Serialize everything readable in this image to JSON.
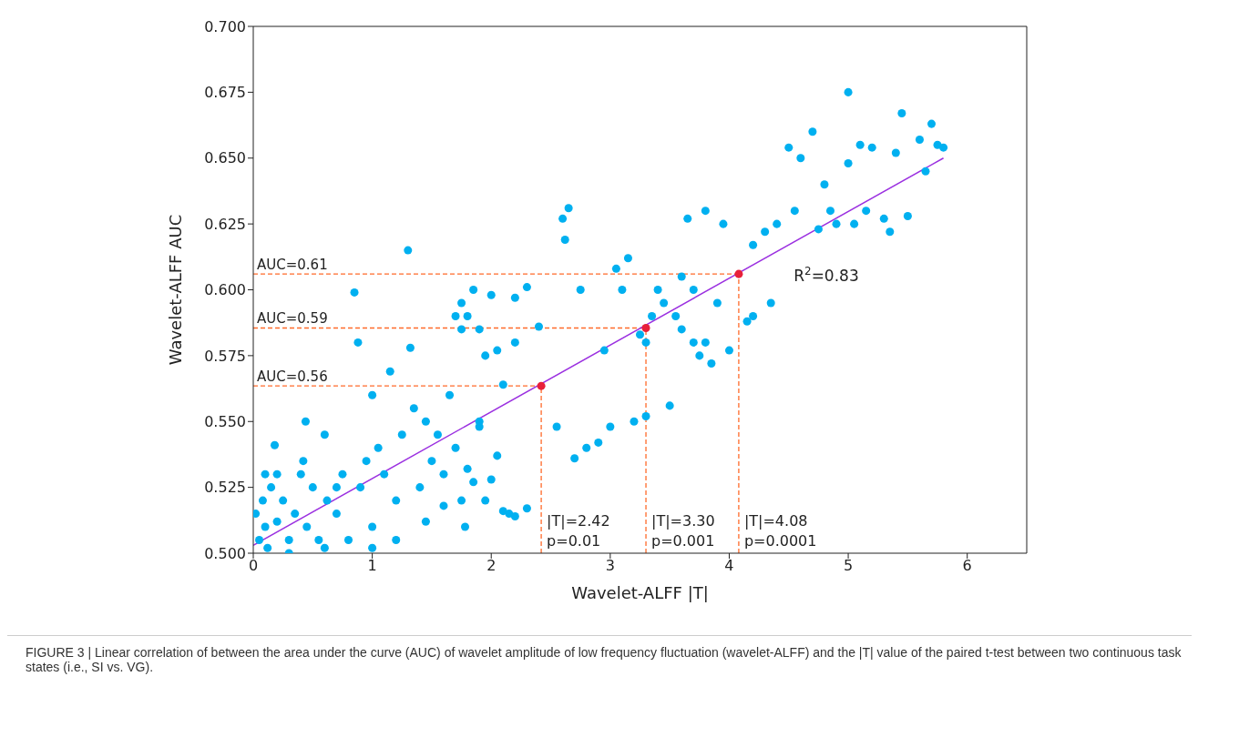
{
  "chart_data": {
    "type": "scatter",
    "xlabel": "Wavelet-ALFF |T|",
    "ylabel": "Wavelet-ALFF AUC",
    "xlim": [
      0,
      6.5
    ],
    "ylim": [
      0.5,
      0.7
    ],
    "xticks": [
      0,
      1,
      2,
      3,
      4,
      5,
      6
    ],
    "yticks": [
      {
        "value": 0.5,
        "label": "0.500"
      },
      {
        "value": 0.525,
        "label": "0.525"
      },
      {
        "value": 0.55,
        "label": "0.550"
      },
      {
        "value": 0.575,
        "label": "0.575"
      },
      {
        "value": 0.6,
        "label": "0.600"
      },
      {
        "value": 0.625,
        "label": "0.625"
      },
      {
        "value": 0.65,
        "label": "0.650"
      },
      {
        "value": 0.675,
        "label": "0.675"
      },
      {
        "value": 0.7,
        "label": "0.700"
      }
    ],
    "grid": false,
    "legend": false,
    "marker": "circle",
    "series": [
      {
        "color": "#00b0f0",
        "x": [
          0.02,
          0.05,
          0.08,
          0.1,
          0.12,
          0.15,
          0.18,
          0.2,
          0.25,
          0.3,
          0.35,
          0.4,
          0.42,
          0.44,
          0.45,
          0.5,
          0.55,
          0.6,
          0.62,
          0.7,
          0.75,
          0.8,
          0.85,
          0.88,
          0.9,
          0.95,
          1.0,
          1.05,
          1.1,
          1.15,
          1.2,
          1.25,
          1.3,
          1.32,
          1.35,
          1.4,
          1.45,
          1.5,
          1.55,
          1.6,
          1.65,
          1.7,
          1.75,
          1.78,
          1.8,
          1.85,
          1.9,
          1.95,
          2.0,
          2.05,
          2.1,
          2.15,
          2.2,
          2.3,
          1.0,
          0.6,
          0.3,
          1.2,
          1.45,
          1.6,
          0.2,
          0.1,
          0.7,
          1.9,
          1.0,
          1.7,
          1.75,
          1.8,
          1.75,
          1.85,
          1.9,
          1.95,
          2.0,
          2.05,
          2.1,
          2.2,
          2.2,
          2.3,
          2.4,
          2.55,
          2.6,
          2.62,
          2.65,
          2.7,
          2.75,
          2.8,
          2.9,
          2.95,
          3.0,
          3.05,
          3.1,
          3.15,
          3.2,
          3.25,
          3.3,
          3.35,
          3.4,
          3.45,
          3.5,
          3.55,
          3.6,
          3.65,
          3.7,
          3.75,
          3.8,
          3.85,
          3.9,
          3.95,
          4.0,
          4.15,
          4.2,
          4.3,
          4.35,
          4.4,
          4.5,
          4.55,
          4.6,
          4.7,
          4.75,
          4.8,
          4.85,
          5.0,
          5.0,
          5.05,
          5.1,
          5.15,
          5.2,
          5.3,
          5.4,
          5.45,
          5.5,
          5.6,
          5.65,
          5.7,
          5.75,
          5.8,
          3.6,
          3.8,
          3.3,
          3.7,
          4.2,
          5.35,
          4.9
        ],
        "values": [
          0.515,
          0.505,
          0.52,
          0.51,
          0.502,
          0.525,
          0.541,
          0.512,
          0.52,
          0.505,
          0.515,
          0.53,
          0.535,
          0.55,
          0.51,
          0.525,
          0.505,
          0.545,
          0.52,
          0.515,
          0.53,
          0.505,
          0.599,
          0.58,
          0.525,
          0.535,
          0.51,
          0.54,
          0.53,
          0.569,
          0.52,
          0.545,
          0.615,
          0.578,
          0.555,
          0.525,
          0.55,
          0.535,
          0.545,
          0.53,
          0.56,
          0.54,
          0.52,
          0.51,
          0.532,
          0.527,
          0.55,
          0.52,
          0.528,
          0.537,
          0.516,
          0.515,
          0.514,
          0.517,
          0.502,
          0.502,
          0.5,
          0.505,
          0.512,
          0.518,
          0.53,
          0.53,
          0.525,
          0.548,
          0.56,
          0.59,
          0.595,
          0.59,
          0.585,
          0.6,
          0.585,
          0.575,
          0.598,
          0.577,
          0.564,
          0.597,
          0.58,
          0.601,
          0.586,
          0.548,
          0.627,
          0.619,
          0.631,
          0.536,
          0.6,
          0.54,
          0.542,
          0.577,
          0.548,
          0.608,
          0.6,
          0.612,
          0.55,
          0.583,
          0.552,
          0.59,
          0.6,
          0.595,
          0.556,
          0.59,
          0.605,
          0.627,
          0.58,
          0.575,
          0.63,
          0.572,
          0.595,
          0.625,
          0.577,
          0.588,
          0.617,
          0.622,
          0.595,
          0.625,
          0.654,
          0.63,
          0.65,
          0.66,
          0.623,
          0.64,
          0.63,
          0.675,
          0.648,
          0.625,
          0.655,
          0.63,
          0.654,
          0.627,
          0.652,
          0.667,
          0.628,
          0.657,
          0.645,
          0.663,
          0.655,
          0.654,
          0.585,
          0.58,
          0.58,
          0.6,
          0.59,
          0.622,
          0.625
        ]
      },
      {
        "type": "line",
        "marker": "none",
        "color": "#9b30e0",
        "x": [
          0,
          5.8
        ],
        "values": [
          0.503,
          0.65
        ]
      },
      {
        "color": "#e8203a",
        "x": [
          2.42,
          3.3,
          4.08
        ],
        "values": [
          0.5635,
          0.5855,
          0.606
        ]
      }
    ],
    "ref_lines": [
      {
        "axis": "y",
        "value": 0.5635,
        "label": "AUC=0.56",
        "color": "#ff6a2a",
        "line_style": "dashed"
      },
      {
        "axis": "y",
        "value": 0.5855,
        "label": "AUC=0.59",
        "color": "#ff6a2a",
        "line_style": "dashed"
      },
      {
        "axis": "y",
        "value": 0.606,
        "label": "AUC=0.61",
        "color": "#ff6a2a",
        "line_style": "dashed"
      },
      {
        "axis": "x",
        "value": 2.42,
        "label": "|T|=2.42\np=0.01",
        "color": "#ff6a2a",
        "line_style": "dashed"
      },
      {
        "axis": "x",
        "value": 3.3,
        "label": "|T|=3.30\np=0.001",
        "color": "#ff6a2a",
        "line_style": "dashed"
      },
      {
        "axis": "x",
        "value": 4.08,
        "label": "|T|=4.08\np=0.0001",
        "color": "#ff6a2a",
        "line_style": "dashed"
      }
    ],
    "annotations": [
      {
        "text": "R$^{2}$=0.83",
        "x": 4.45,
        "y": 0.6158
      },
      "FIGURE 3 | Linear correlation of between the area under the curve (AUC) of wavelet amplitude of low frequency fluctuation (wavelet-ALFF) and the |T| value of the paired t-test between two continuous task states (i.e., SI vs. VG)."
    ]
  }
}
